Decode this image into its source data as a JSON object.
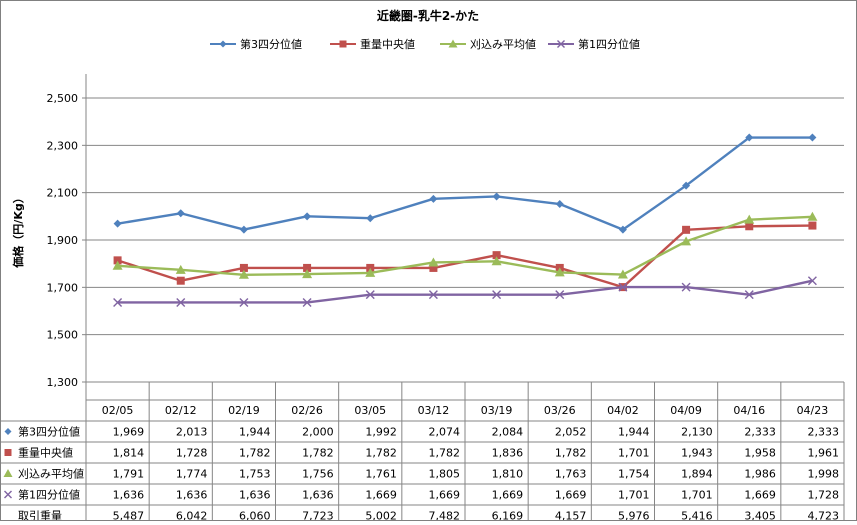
{
  "chart_data": {
    "type": "line",
    "title": "近畿圏-乳牛2-かた",
    "ylabel": "価格（円/Kg）",
    "xlabel": "",
    "ylim": [
      1300,
      2500
    ],
    "yticks": [
      1300,
      1500,
      1700,
      1900,
      2100,
      2300,
      2500
    ],
    "ytick_labels": [
      "1,300",
      "1,500",
      "1,700",
      "1,900",
      "2,100",
      "2,300",
      "2,500"
    ],
    "grid": true,
    "legend_position": "top",
    "categories": [
      "02/05",
      "02/12",
      "02/19",
      "02/26",
      "03/05",
      "03/12",
      "03/19",
      "03/26",
      "04/02",
      "04/09",
      "04/16",
      "04/23"
    ],
    "series": [
      {
        "name": "第3四分位値",
        "color": "#4F81BD",
        "marker": "diamond",
        "values": [
          1969,
          2013,
          1944,
          2000,
          1992,
          2074,
          2084,
          2052,
          1944,
          2130,
          2333,
          2333
        ],
        "labels": [
          "1,969",
          "2,013",
          "1,944",
          "2,000",
          "1,992",
          "2,074",
          "2,084",
          "2,052",
          "1,944",
          "2,130",
          "2,333",
          "2,333"
        ]
      },
      {
        "name": "重量中央値",
        "color": "#C0504D",
        "marker": "square",
        "values": [
          1814,
          1728,
          1782,
          1782,
          1782,
          1782,
          1836,
          1782,
          1701,
          1943,
          1958,
          1961
        ],
        "labels": [
          "1,814",
          "1,728",
          "1,782",
          "1,782",
          "1,782",
          "1,782",
          "1,836",
          "1,782",
          "1,701",
          "1,943",
          "1,958",
          "1,961"
        ]
      },
      {
        "name": "刈込み平均値",
        "color": "#9BBB59",
        "marker": "triangle",
        "values": [
          1791,
          1774,
          1753,
          1756,
          1761,
          1805,
          1810,
          1763,
          1754,
          1894,
          1986,
          1998
        ],
        "labels": [
          "1,791",
          "1,774",
          "1,753",
          "1,756",
          "1,761",
          "1,805",
          "1,810",
          "1,763",
          "1,754",
          "1,894",
          "1,986",
          "1,998"
        ]
      },
      {
        "name": "第1四分位値",
        "color": "#8064A2",
        "marker": "x",
        "values": [
          1636,
          1636,
          1636,
          1636,
          1669,
          1669,
          1669,
          1669,
          1701,
          1701,
          1669,
          1728
        ],
        "labels": [
          "1,636",
          "1,636",
          "1,636",
          "1,636",
          "1,669",
          "1,669",
          "1,669",
          "1,669",
          "1,701",
          "1,701",
          "1,669",
          "1,728"
        ]
      }
    ],
    "table_extra_rows": [
      {
        "name": "取引重量",
        "labels": [
          "5,487",
          "6,042",
          "6,060",
          "7,723",
          "5,002",
          "7,482",
          "6,169",
          "4,157",
          "5,976",
          "5,416",
          "3,405",
          "4,723"
        ]
      }
    ]
  }
}
